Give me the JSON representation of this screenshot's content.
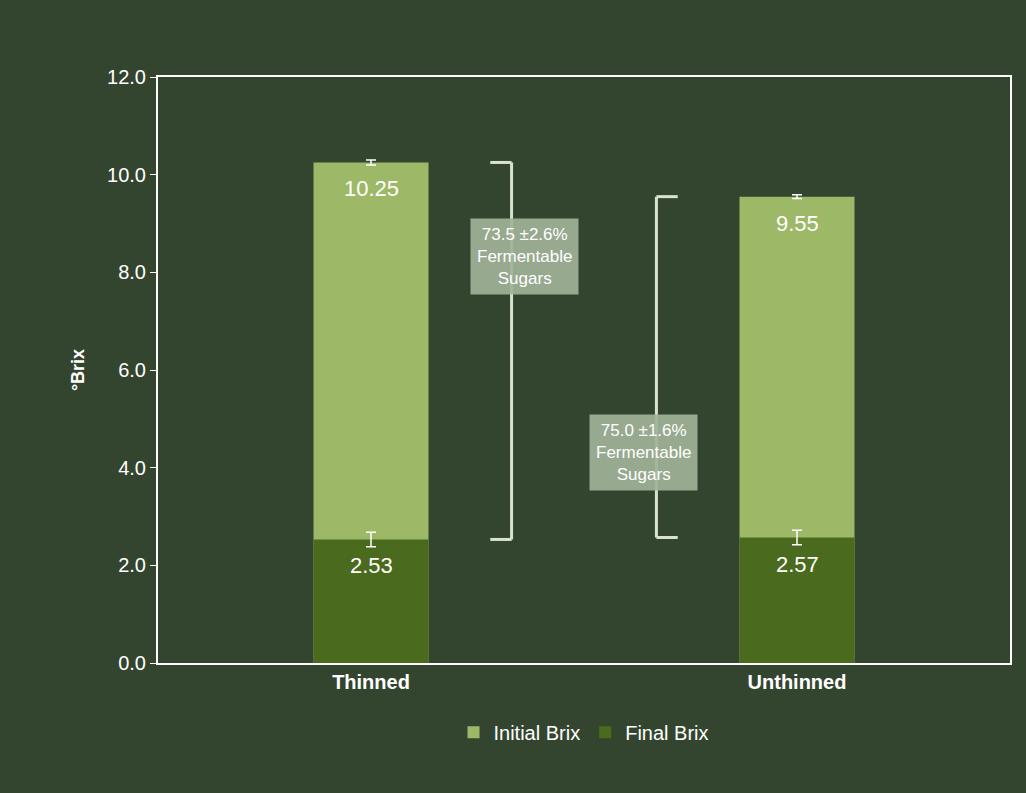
{
  "chart_data": {
    "type": "bar",
    "categories": [
      "Thinned",
      "Unthinned"
    ],
    "series": [
      {
        "name": "Initial Brix",
        "color": "#9db867",
        "values": [
          10.25,
          9.55
        ],
        "error": [
          0.05,
          0.04
        ]
      },
      {
        "name": "Final Brix",
        "color": "#4a6a1d",
        "values": [
          2.53,
          2.57
        ],
        "error": [
          0.15,
          0.15
        ]
      }
    ],
    "y_label": "°Brix",
    "ylim": [
      0,
      12
    ],
    "yticks": [
      {
        "value": 0,
        "label": "0.0"
      },
      {
        "value": 2,
        "label": "2.0"
      },
      {
        "value": 4,
        "label": "4.0"
      },
      {
        "value": 6,
        "label": "6.0"
      },
      {
        "value": 8,
        "label": "8.0"
      },
      {
        "value": 10,
        "label": "10.0"
      },
      {
        "value": 12,
        "label": "12.0"
      }
    ],
    "grid": false,
    "stacked": false,
    "data_labels": true,
    "legend": "bottom",
    "annotations": [
      {
        "category": "Thinned",
        "lines": [
          "73.5 ±2.6%",
          "Fermentable",
          "Sugars"
        ]
      },
      {
        "category": "Unthinned",
        "lines": [
          "75.0 ±1.6%",
          "Fermentable",
          "Sugars"
        ]
      }
    ]
  }
}
